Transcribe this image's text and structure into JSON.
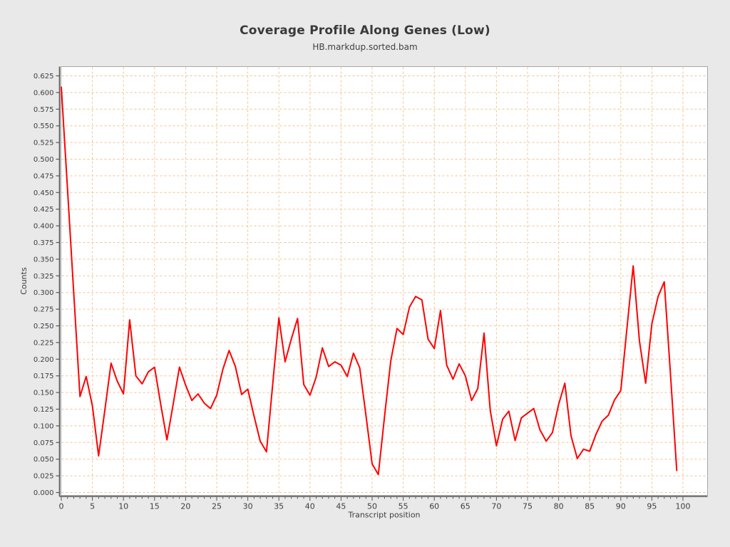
{
  "page": {
    "background": "#e9e9e9"
  },
  "header": {
    "title": "Coverage Profile Along Genes (Low)",
    "subtitle": "HB.markdup.sorted.bam"
  },
  "chart_data": {
    "type": "line",
    "title": "Coverage Profile Along Genes (Low)",
    "subtitle": "HB.markdup.sorted.bam",
    "xlabel": "Transcript position",
    "ylabel": "Counts",
    "x_first": 0,
    "x_step": 1,
    "values": [
      0.608,
      0.455,
      0.3,
      0.144,
      0.174,
      0.13,
      0.055,
      0.123,
      0.194,
      0.167,
      0.148,
      0.259,
      0.175,
      0.163,
      0.181,
      0.188,
      0.132,
      0.079,
      0.133,
      0.188,
      0.161,
      0.138,
      0.148,
      0.134,
      0.126,
      0.146,
      0.185,
      0.213,
      0.189,
      0.147,
      0.155,
      0.115,
      0.077,
      0.061,
      0.162,
      0.262,
      0.196,
      0.23,
      0.261,
      0.162,
      0.146,
      0.173,
      0.217,
      0.189,
      0.196,
      0.191,
      0.174,
      0.209,
      0.187,
      0.116,
      0.043,
      0.027,
      0.114,
      0.198,
      0.246,
      0.237,
      0.278,
      0.294,
      0.289,
      0.23,
      0.216,
      0.273,
      0.191,
      0.17,
      0.193,
      0.175,
      0.138,
      0.156,
      0.239,
      0.123,
      0.07,
      0.11,
      0.122,
      0.078,
      0.112,
      0.119,
      0.126,
      0.094,
      0.077,
      0.09,
      0.132,
      0.164,
      0.085,
      0.051,
      0.065,
      0.062,
      0.087,
      0.107,
      0.116,
      0.139,
      0.153,
      0.247,
      0.34,
      0.227,
      0.164,
      0.253,
      0.294,
      0.316,
      0.176,
      0.033
    ],
    "xlim": [
      0,
      104
    ],
    "ylim": [
      0,
      0.625
    ],
    "x_major_tick_step": 5,
    "x_minor_tick_step": 1,
    "y_tick_step": 0.025,
    "y_tick_decimals": 3,
    "grid": true,
    "legend_position": "none",
    "line_color": "#ff0000",
    "grid_color": "#f5c28e",
    "plot_bg": "#ffffff",
    "outer_bg": "#e9e9e9",
    "border_color": "#a6a6a6",
    "axis_color": "#565656",
    "text_color": "#3d3d3d"
  }
}
